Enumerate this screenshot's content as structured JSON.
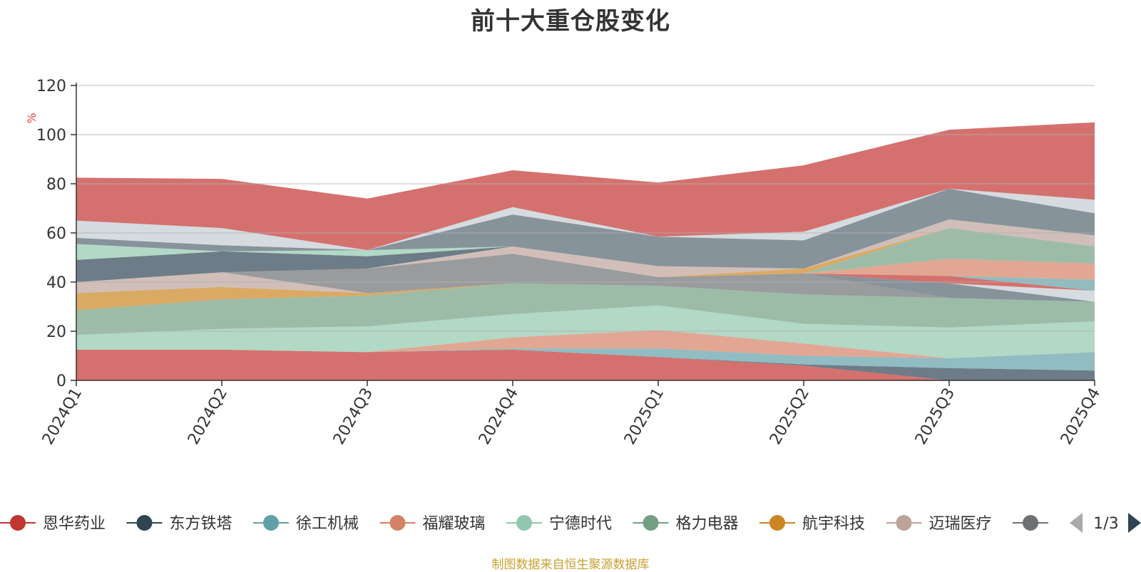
{
  "title": "前十大重仓股变化",
  "source": "制图数据来自恒生聚源数据库",
  "legend": {
    "page": "1/3",
    "visible_count": 9,
    "items": [
      {
        "name": "恩华药业",
        "color": "#c23531"
      },
      {
        "name": "东方铁塔",
        "color": "#2f4554"
      },
      {
        "name": "徐工机械",
        "color": "#61a0a8"
      },
      {
        "name": "福耀玻璃",
        "color": "#d48265"
      },
      {
        "name": "宁德时代",
        "color": "#91c7ae"
      },
      {
        "name": "格力电器",
        "color": "#749f83"
      },
      {
        "name": "航宇科技",
        "color": "#ca8622"
      },
      {
        "name": "迈瑞医疗",
        "color": "#bda29a"
      },
      {
        "name": "",
        "color": "#6e7074"
      }
    ]
  },
  "chart_data": {
    "type": "area",
    "stacked": true,
    "x": [
      "2024Q1",
      "2024Q2",
      "2024Q3",
      "2024Q4",
      "2025Q1",
      "2025Q2",
      "2025Q3",
      "2025Q4"
    ],
    "ylabel": "%",
    "ylim": [
      0,
      120
    ],
    "yticks": [
      0,
      20,
      40,
      60,
      80,
      100,
      120
    ],
    "grid": true,
    "series": [
      {
        "name": "恩华药业",
        "color": "#c23531",
        "values": [
          12.5,
          12.5,
          11.5,
          12.5,
          9.5,
          6,
          0,
          0
        ]
      },
      {
        "name": "东方铁塔",
        "color": "#2f4554",
        "values": [
          0,
          0,
          0,
          0,
          0,
          0.5,
          5,
          4
        ]
      },
      {
        "name": "徐工机械",
        "color": "#61a0a8",
        "values": [
          0,
          0,
          0,
          0.5,
          3.5,
          3.5,
          4,
          7.5
        ]
      },
      {
        "name": "福耀玻璃",
        "color": "#d48265",
        "values": [
          0,
          0,
          0,
          4.5,
          7.5,
          5,
          0,
          0
        ]
      },
      {
        "name": "宁德时代",
        "color": "#91c7ae",
        "values": [
          6,
          8.5,
          10.5,
          9.5,
          10,
          8,
          12.5,
          12.5
        ]
      },
      {
        "name": "格力电器",
        "color": "#749f83",
        "values": [
          10,
          12,
          12.5,
          12.5,
          8,
          12,
          12,
          8
        ]
      },
      {
        "name": "航宇科技",
        "color": "#ca8622",
        "values": [
          7,
          5,
          1,
          0,
          0,
          0,
          0,
          0
        ]
      },
      {
        "name": "迈瑞医疗",
        "color": "#bda29a",
        "values": [
          4.5,
          6,
          0,
          0,
          0,
          0,
          0,
          0
        ]
      },
      {
        "name": "",
        "color": "#6e7074",
        "values": [
          0,
          0,
          10,
          12,
          3.5,
          8.5,
          0,
          0
        ]
      },
      {
        "name": "",
        "color": "#546570",
        "values": [
          0,
          0,
          0,
          0,
          0,
          0,
          6,
          0
        ]
      },
      {
        "name": "",
        "color": "#c4ccd3",
        "values": [
          0,
          0,
          0,
          0,
          0,
          0,
          0,
          4.5
        ]
      },
      {
        "name": "",
        "color": "#c23531",
        "values": [
          0,
          0,
          0,
          0,
          0,
          0,
          3,
          0
        ]
      },
      {
        "name": "",
        "color": "#61a0a8",
        "values": [
          0,
          0,
          0,
          0,
          0,
          0,
          0,
          4.5
        ]
      },
      {
        "name": "",
        "color": "#d48265",
        "values": [
          0,
          0,
          0,
          0,
          0,
          0,
          7,
          6.5
        ]
      },
      {
        "name": "",
        "color": "#749f83",
        "values": [
          0,
          0,
          0,
          0,
          0,
          0,
          12.5,
          7
        ]
      },
      {
        "name": "",
        "color": "#ca8622",
        "values": [
          0,
          0,
          0,
          0,
          0,
          2,
          0,
          0
        ]
      },
      {
        "name": "",
        "color": "#bda29a",
        "values": [
          0,
          0,
          0,
          3,
          4.5,
          0,
          3.5,
          4.5
        ]
      },
      {
        "name": "",
        "color": "#2f4554",
        "values": [
          9,
          8.5,
          5,
          0,
          0,
          0,
          0,
          0
        ]
      },
      {
        "name": "",
        "color": "#91c7ae",
        "values": [
          6.5,
          0,
          2.5,
          0,
          0,
          0,
          0,
          0
        ]
      },
      {
        "name": "",
        "color": "#546570",
        "values": [
          2.5,
          2.5,
          0,
          13,
          12,
          11.5,
          12.5,
          9
        ]
      },
      {
        "name": "",
        "color": "#c4ccd3",
        "values": [
          7,
          7,
          0,
          3,
          0,
          3.5,
          0,
          5.5
        ]
      },
      {
        "name": "",
        "color": "#c23531",
        "values": [
          17.5,
          20,
          21,
          15,
          22,
          27,
          24,
          31.5
        ]
      }
    ]
  }
}
